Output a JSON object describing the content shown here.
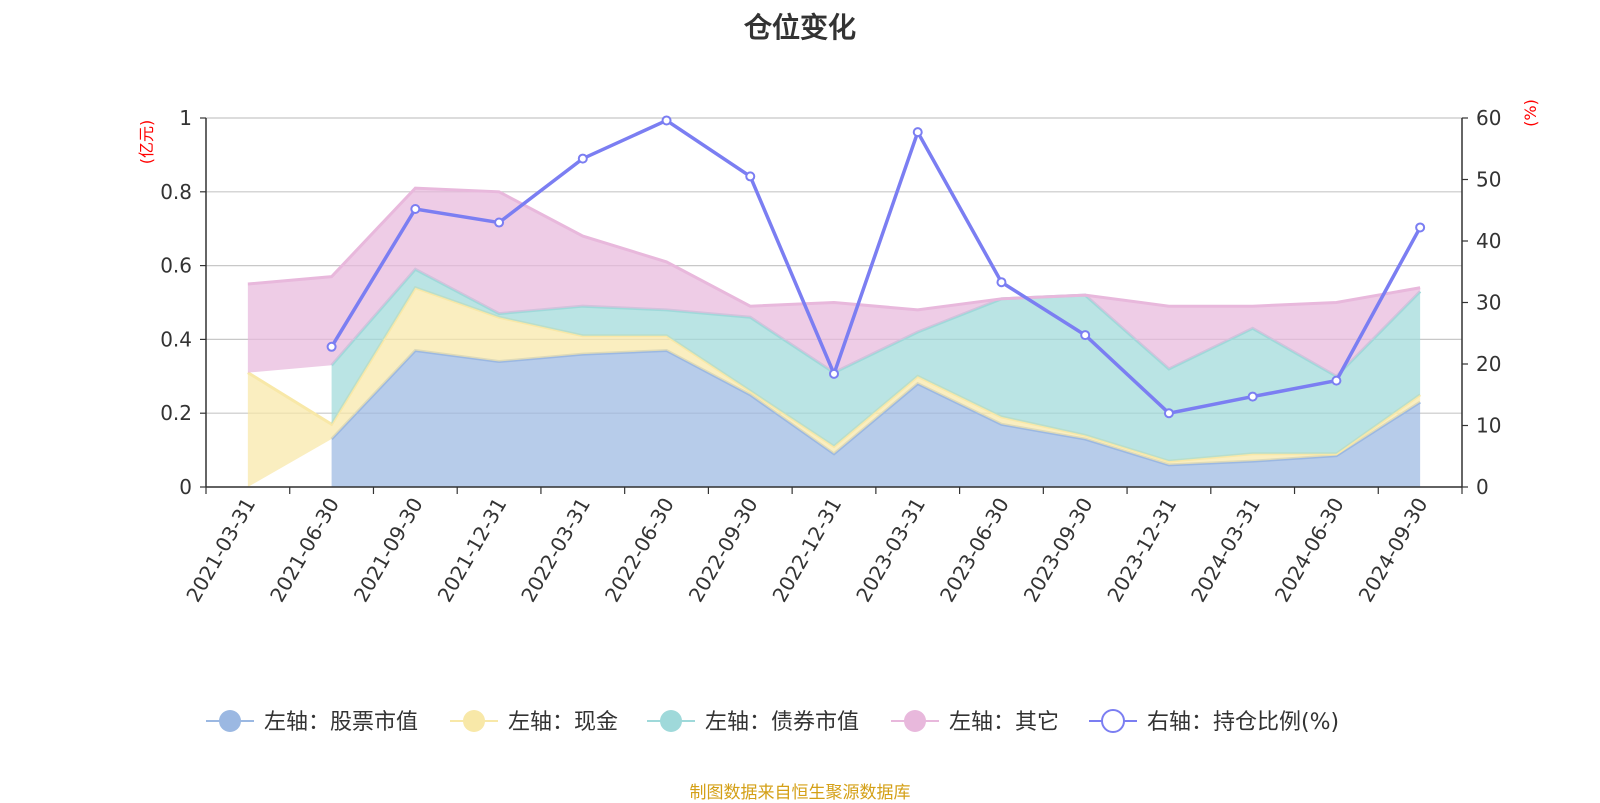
{
  "chart_data": {
    "type": "area",
    "title": "仓位变化",
    "categories": [
      "2021-03-31",
      "2021-06-30",
      "2021-09-30",
      "2021-12-31",
      "2022-03-31",
      "2022-06-30",
      "2022-09-30",
      "2022-12-31",
      "2023-03-31",
      "2023-06-30",
      "2023-09-30",
      "2023-12-31",
      "2024-03-31",
      "2024-06-30",
      "2024-09-30"
    ],
    "left_axis": {
      "unit": "(亿元)",
      "ylim": [
        0,
        1
      ],
      "ticks": [
        "0",
        "0.2",
        "0.4",
        "0.6",
        "0.8",
        "1"
      ]
    },
    "right_axis": {
      "unit": "(%)",
      "ylim": [
        0,
        60
      ],
      "ticks": [
        "0",
        "10",
        "20",
        "30",
        "40",
        "50",
        "60"
      ]
    },
    "grid": true,
    "legend_position": "bottom",
    "series": [
      {
        "name": "左轴：股票市值",
        "axis": "left",
        "stacked": true,
        "color": "#9bb8e2",
        "values": [
          null,
          0.13,
          0.37,
          0.34,
          0.36,
          0.37,
          0.25,
          0.09,
          0.28,
          0.17,
          0.13,
          0.06,
          0.07,
          0.085,
          0.23
        ]
      },
      {
        "name": "左轴：现金",
        "axis": "left",
        "stacked": true,
        "color": "#f8e8a8",
        "values": [
          0.31,
          0.04,
          0.17,
          0.12,
          0.05,
          0.04,
          0.01,
          0.02,
          0.02,
          0.02,
          0.01,
          0.01,
          0.02,
          0.005,
          0.02
        ]
      },
      {
        "name": "左轴：债券市值",
        "axis": "left",
        "stacked": true,
        "color": "#9fd9da",
        "values": [
          null,
          0.16,
          0.05,
          0.01,
          0.08,
          0.07,
          0.2,
          0.2,
          0.12,
          0.32,
          0.38,
          0.25,
          0.34,
          0.21,
          0.28
        ]
      },
      {
        "name": "左轴：其它",
        "axis": "left",
        "stacked": true,
        "color": "#e8b8dc",
        "values": [
          0.24,
          0.24,
          0.22,
          0.33,
          0.19,
          0.13,
          0.03,
          0.19,
          0.06,
          0.0,
          0.0,
          0.17,
          0.06,
          0.2,
          0.01
        ]
      },
      {
        "name": "右轴：持仓比例(%)",
        "axis": "right",
        "type": "line",
        "color": "#7b7ef2",
        "values": [
          null,
          22.8,
          45.2,
          43.0,
          53.4,
          59.6,
          50.5,
          18.4,
          57.7,
          33.3,
          24.7,
          12.0,
          14.7,
          17.3,
          42.2
        ]
      }
    ]
  },
  "footer": {
    "source": "制图数据来自恒生聚源数据库"
  }
}
